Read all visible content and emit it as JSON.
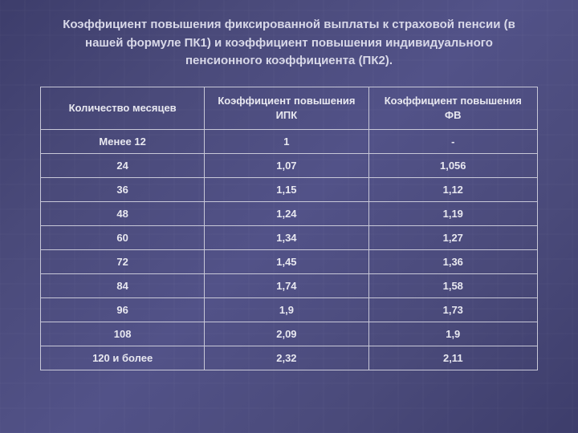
{
  "title": "Коэффициент повышения фиксированной выплаты к страховой пенсии (в нашей формуле ПК1) и коэффициент повышения индивидуального пенсионного коэффициента (ПК2).",
  "table": {
    "columns": [
      "Количество месяцев",
      "Коэффициент повышения ИПК",
      "Коэффициент повышения ФВ"
    ],
    "rows": [
      [
        "Менее 12",
        "1",
        "-"
      ],
      [
        "24",
        "1,07",
        "1,056"
      ],
      [
        "36",
        "1,15",
        "1,12"
      ],
      [
        "48",
        "1,24",
        "1,19"
      ],
      [
        "60",
        "1,34",
        "1,27"
      ],
      [
        "72",
        "1,45",
        "1,36"
      ],
      [
        "84",
        "1,74",
        "1,58"
      ],
      [
        "96",
        "1,9",
        "1,73"
      ],
      [
        "108",
        "2,09",
        "1,9"
      ],
      [
        "120 и более",
        "2,32",
        "2,11"
      ]
    ],
    "border_color": "#c8c8d8",
    "text_color": "#e8e8f0",
    "header_fontsize": 13,
    "cell_fontsize": 13,
    "font_weight": "bold"
  },
  "styling": {
    "background_gradient": [
      "#3d3d6b",
      "#4a4a7a",
      "#525288",
      "#4a4a7a",
      "#3d3d6b"
    ],
    "title_color": "#d8d8e8",
    "title_fontsize": 15,
    "grid_overlay_color": "rgba(255,255,255,0.03)",
    "font_family": "Arial"
  }
}
